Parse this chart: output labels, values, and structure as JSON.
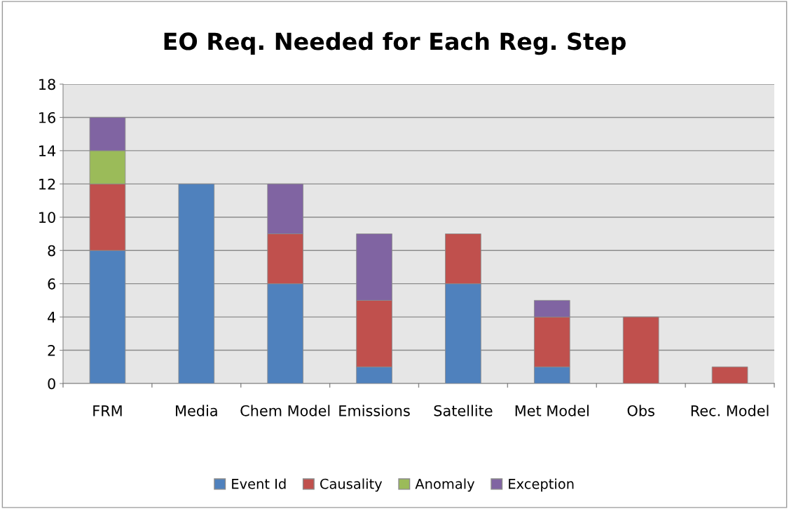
{
  "chart_data": {
    "type": "bar",
    "title": "EO Req. Needed for Each Reg. Step",
    "stacked": true,
    "categories": [
      "FRM",
      "Media",
      "Chem Model",
      "Emissions",
      "Satellite",
      "Met Model",
      "Obs",
      "Rec. Model"
    ],
    "series": [
      {
        "name": "Event Id",
        "color": "#4f81bd",
        "values": [
          8,
          12,
          6,
          1,
          6,
          1,
          null,
          null
        ]
      },
      {
        "name": "Causality",
        "color": "#c0504d",
        "values": [
          4,
          null,
          3,
          4,
          3,
          3,
          4,
          1
        ]
      },
      {
        "name": "Anomaly",
        "color": "#9bbb59",
        "values": [
          2,
          null,
          null,
          null,
          null,
          null,
          null,
          null
        ]
      },
      {
        "name": "Exception",
        "color": "#8064a2",
        "values": [
          2,
          null,
          3,
          4,
          null,
          1,
          null,
          null
        ]
      }
    ],
    "ylim": [
      0,
      18
    ],
    "yticks": [
      0,
      2,
      4,
      6,
      8,
      10,
      12,
      14,
      16,
      18
    ],
    "grid": "y",
    "legend": "bottom"
  }
}
